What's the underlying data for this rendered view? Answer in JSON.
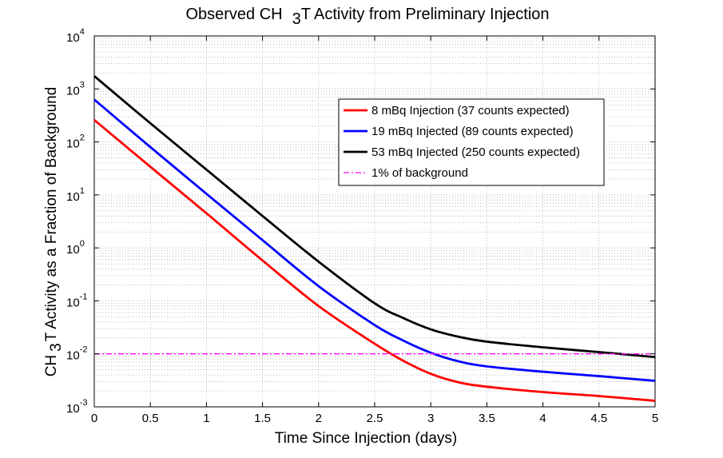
{
  "chart_data": {
    "type": "line",
    "title": {
      "main": "Observed CH",
      "sub": "3",
      "tail": "T Activity from Preliminary Injection"
    },
    "xlabel": "Time Since Injection (days)",
    "ylabel": {
      "main": "CH",
      "sub": "3",
      "tail": "T Activity as a Fraction of Background"
    },
    "xlim": [
      0,
      5
    ],
    "ylim": [
      0.001,
      10000
    ],
    "yscale": "log",
    "grid": true,
    "x_ticks": [
      0,
      0.5,
      1,
      1.5,
      2,
      2.5,
      3,
      3.5,
      4,
      4.5,
      5
    ],
    "x_tick_labels": [
      "0",
      "0.5",
      "1",
      "1.5",
      "2",
      "2.5",
      "3",
      "3.5",
      "4",
      "4.5",
      "5"
    ],
    "y_ticks": [
      {
        "value": 0.001,
        "base": "10",
        "exp": "-3"
      },
      {
        "value": 0.01,
        "base": "10",
        "exp": "-2"
      },
      {
        "value": 0.1,
        "base": "10",
        "exp": "-1"
      },
      {
        "value": 1,
        "base": "10",
        "exp": "0"
      },
      {
        "value": 10,
        "base": "10",
        "exp": "1"
      },
      {
        "value": 100,
        "base": "10",
        "exp": "2"
      },
      {
        "value": 1000,
        "base": "10",
        "exp": "3"
      },
      {
        "value": 10000,
        "base": "10",
        "exp": "4"
      }
    ],
    "legend_position": "upper-right",
    "series": [
      {
        "name": "8 mBq Injection (37 counts expected)",
        "color": "#ff0000",
        "style": "solid",
        "x": [
          0,
          0.5,
          1,
          1.5,
          2,
          2.5,
          2.75,
          3,
          3.25,
          3.5,
          4,
          4.5,
          5
        ],
        "y": [
          260,
          34,
          4.5,
          0.58,
          0.08,
          0.0155,
          0.0075,
          0.0042,
          0.0029,
          0.0024,
          0.0019,
          0.0016,
          0.0013
        ]
      },
      {
        "name": "19 mBq Injected (89 counts expected)",
        "color": "#0000ff",
        "style": "solid",
        "x": [
          0,
          0.5,
          1,
          1.5,
          2,
          2.5,
          2.75,
          3,
          3.25,
          3.5,
          4,
          4.5,
          5
        ],
        "y": [
          630,
          80,
          10.5,
          1.4,
          0.19,
          0.035,
          0.018,
          0.0105,
          0.0072,
          0.0058,
          0.0046,
          0.0038,
          0.0031
        ]
      },
      {
        "name": "53 mBq Injected (250 counts expected)",
        "color": "#000000",
        "style": "solid",
        "x": [
          0,
          0.5,
          1,
          1.5,
          2,
          2.5,
          2.75,
          3,
          3.25,
          3.5,
          4,
          4.5,
          5
        ],
        "y": [
          1750,
          225,
          30,
          4.0,
          0.55,
          0.09,
          0.048,
          0.029,
          0.021,
          0.017,
          0.0133,
          0.0108,
          0.0087
        ]
      },
      {
        "name": "1% of background",
        "color": "#ff00ff",
        "style": "dashdot",
        "x": [
          0,
          5
        ],
        "y": [
          0.01,
          0.01
        ]
      }
    ]
  }
}
